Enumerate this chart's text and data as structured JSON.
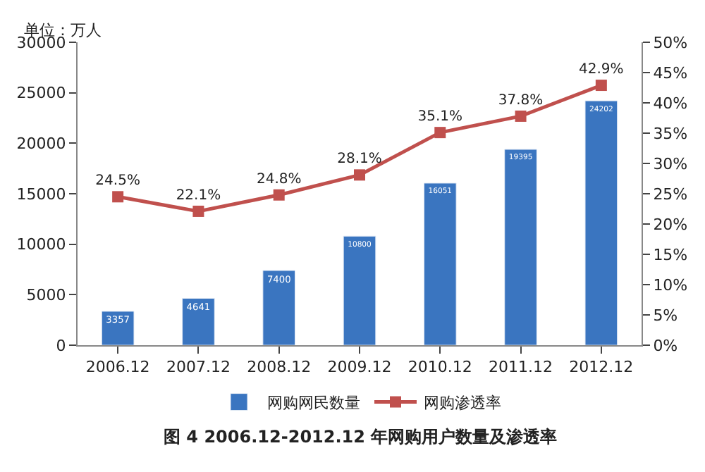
{
  "chart_data": {
    "type": "bar",
    "categories": [
      "2006.12",
      "2007.12",
      "2008.12",
      "2009.12",
      "2010.12",
      "2011.12",
      "2012.12"
    ],
    "series": [
      {
        "name": "网购网民数量",
        "color": "#3a75c0",
        "values": [
          3357,
          4641,
          7400,
          10800,
          16051,
          19395,
          24202
        ],
        "value_labels": [
          "3357",
          "4641",
          "7400",
          "10800",
          "16051",
          "19395",
          "24202"
        ]
      },
      {
        "name": "网购渗透率",
        "type": "line",
        "axis": "y2",
        "color": "#c0504d",
        "values": [
          24.5,
          22.1,
          24.8,
          28.1,
          35.1,
          37.8,
          42.9
        ],
        "value_labels": [
          "24.5%",
          "22.1%",
          "24.8%",
          "28.1%",
          "35.1%",
          "37.8%",
          "42.9%"
        ]
      }
    ],
    "ylim": [
      0,
      30000
    ],
    "yticks": [
      0,
      5000,
      10000,
      15000,
      20000,
      25000,
      30000
    ],
    "y2lim": [
      0,
      50
    ],
    "y2ticks": [
      {
        "value": 0,
        "label": "0%"
      },
      {
        "value": 5,
        "label": "5%"
      },
      {
        "value": 10,
        "label": "10%"
      },
      {
        "value": 15,
        "label": "15%"
      },
      {
        "value": 20,
        "label": "20%"
      },
      {
        "value": 25,
        "label": "25%"
      },
      {
        "value": 30,
        "label": "30%"
      },
      {
        "value": 35,
        "label": "35%"
      },
      {
        "value": 40,
        "label": "40%"
      },
      {
        "value": 45,
        "label": "45%"
      },
      {
        "value": 50,
        "label": "50%"
      }
    ],
    "marker": "square",
    "line_style": "solid",
    "legend": "bottom",
    "annotations": [
      "单位：万人",
      "图 4 2006.12-2012.12 年网购用户数量及渗透率"
    ]
  }
}
